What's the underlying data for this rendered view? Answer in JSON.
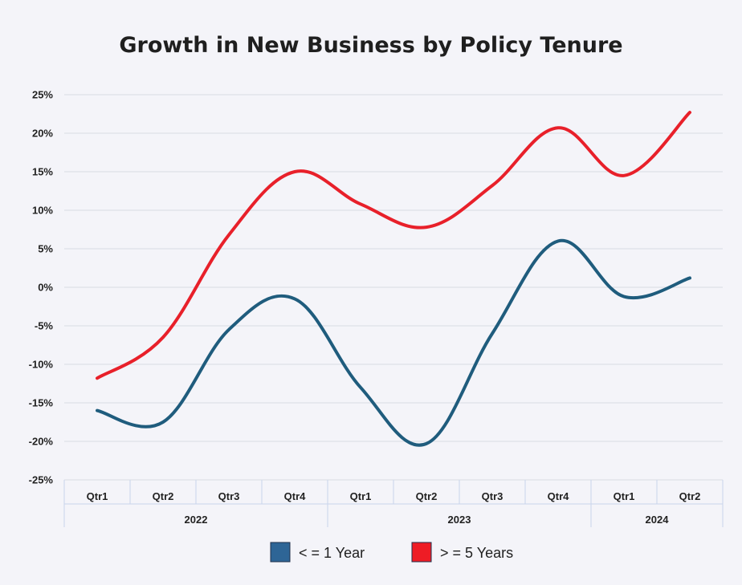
{
  "chart_data": {
    "type": "line",
    "title": "Growth in New Business by Policy Tenure",
    "xlabel": "",
    "ylabel": "",
    "y_ticks": [
      "25%",
      "20%",
      "15%",
      "10%",
      "5%",
      "0%",
      "-5%",
      "-10%",
      "-15%",
      "-20%",
      "-25%"
    ],
    "ylim": [
      -25,
      25
    ],
    "grid": true,
    "legend_position": "bottom",
    "categories": [
      "Qtr1",
      "Qtr2",
      "Qtr3",
      "Qtr4",
      "Qtr1",
      "Qtr2",
      "Qtr3",
      "Qtr4",
      "Qtr1",
      "Qtr2"
    ],
    "groups": [
      {
        "label": "2022",
        "span": 4
      },
      {
        "label": "2023",
        "span": 4
      },
      {
        "label": "2024",
        "span": 2
      }
    ],
    "series": [
      {
        "name": "< = 1 Year",
        "color": "#1f5c7d",
        "swatch": "#2e6596",
        "values": [
          -16,
          -17.5,
          -5.5,
          -1.5,
          -13,
          -20.3,
          -6,
          6,
          -1.2,
          1.2
        ]
      },
      {
        "name": "> = 5 Years",
        "color": "#e8202a",
        "swatch": "#ee1c25",
        "values": [
          -11.8,
          -6.5,
          6.8,
          15,
          10.8,
          7.8,
          13.2,
          20.7,
          14.5,
          22.7
        ]
      }
    ]
  }
}
